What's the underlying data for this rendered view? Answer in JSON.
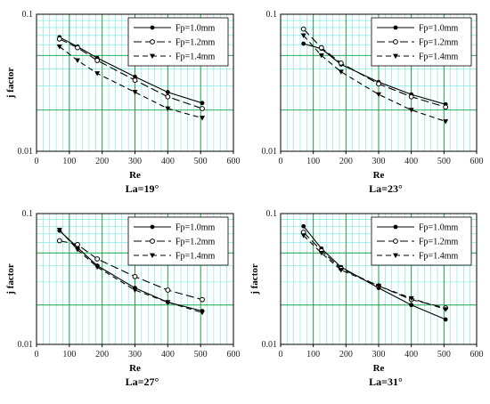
{
  "chart_data": [
    {
      "type": "line",
      "title": "La=19°",
      "xlabel": "Re",
      "ylabel": "j factor",
      "xlim": [
        0,
        600
      ],
      "ylim": [
        0.01,
        0.1
      ],
      "yscale": "log",
      "x_ticks": [
        "0",
        "100",
        "200",
        "300",
        "400",
        "500",
        "600"
      ],
      "y_ticks": [
        "0.01",
        "0.1"
      ],
      "grid": true,
      "legend_position": "top-right",
      "series": [
        {
          "name": "Fp=1.0mm",
          "x": [
            70,
            125,
            185,
            300,
            400,
            505
          ],
          "y": [
            0.068,
            0.058,
            0.048,
            0.035,
            0.027,
            0.0225
          ]
        },
        {
          "name": "Fp=1.2mm",
          "x": [
            70,
            125,
            185,
            300,
            400,
            505
          ],
          "y": [
            0.066,
            0.057,
            0.046,
            0.033,
            0.025,
            0.0205
          ]
        },
        {
          "name": "Fp=1.4mm",
          "x": [
            70,
            125,
            185,
            300,
            400,
            505
          ],
          "y": [
            0.058,
            0.046,
            0.037,
            0.027,
            0.0205,
            0.0175
          ]
        }
      ]
    },
    {
      "type": "line",
      "title": "La=23°",
      "xlabel": "Re",
      "ylabel": "",
      "xlim": [
        0,
        600
      ],
      "ylim": [
        0.01,
        0.1
      ],
      "yscale": "log",
      "x_ticks": [
        "0",
        "100",
        "200",
        "300",
        "400",
        "500",
        "600"
      ],
      "y_ticks": [
        "0.01",
        "0.1"
      ],
      "grid": true,
      "legend_position": "top-right",
      "series": [
        {
          "name": "Fp=1.0mm",
          "x": [
            70,
            125,
            185,
            300,
            400,
            505
          ],
          "y": [
            0.061,
            0.056,
            0.043,
            0.032,
            0.026,
            0.022
          ]
        },
        {
          "name": "Fp=1.2mm",
          "x": [
            70,
            125,
            185,
            300,
            400,
            505
          ],
          "y": [
            0.078,
            0.057,
            0.044,
            0.031,
            0.025,
            0.021
          ]
        },
        {
          "name": "Fp=1.4mm",
          "x": [
            70,
            125,
            185,
            300,
            400,
            505
          ],
          "y": [
            0.07,
            0.05,
            0.038,
            0.026,
            0.02,
            0.0165
          ]
        }
      ]
    },
    {
      "type": "line",
      "title": "La=27°",
      "xlabel": "Re",
      "ylabel": "j factor",
      "xlim": [
        0,
        600
      ],
      "ylim": [
        0.01,
        0.1
      ],
      "yscale": "log",
      "x_ticks": [
        "0",
        "100",
        "200",
        "300",
        "400",
        "500",
        "600"
      ],
      "y_ticks": [
        "0.01",
        "0.1"
      ],
      "grid": true,
      "legend_position": "top-right",
      "series": [
        {
          "name": "Fp=1.0mm",
          "x": [
            70,
            125,
            185,
            300,
            400,
            505
          ],
          "y": [
            0.074,
            0.055,
            0.04,
            0.027,
            0.021,
            0.018
          ]
        },
        {
          "name": "Fp=1.2mm",
          "x": [
            70,
            125,
            185,
            300,
            400,
            505
          ],
          "y": [
            0.062,
            0.058,
            0.045,
            0.033,
            0.026,
            0.022
          ]
        },
        {
          "name": "Fp=1.4mm",
          "x": [
            70,
            125,
            185,
            300,
            400,
            505
          ],
          "y": [
            0.075,
            0.053,
            0.039,
            0.026,
            0.021,
            0.0175
          ]
        }
      ]
    },
    {
      "type": "line",
      "title": "La=31°",
      "xlabel": "Re",
      "ylabel": "j factor",
      "xlim": [
        0,
        600
      ],
      "ylim": [
        0.01,
        0.1
      ],
      "yscale": "log",
      "x_ticks": [
        "0",
        "100",
        "200",
        "300",
        "400",
        "500",
        "600"
      ],
      "y_ticks": [
        "0.01",
        "0.1"
      ],
      "grid": true,
      "legend_position": "top-right",
      "series": [
        {
          "name": "Fp=1.0mm",
          "x": [
            70,
            125,
            185,
            300,
            400,
            505
          ],
          "y": [
            0.08,
            0.054,
            0.039,
            0.027,
            0.02,
            0.0155
          ]
        },
        {
          "name": "Fp=1.2mm",
          "x": [
            70,
            125,
            185,
            300,
            400,
            505
          ],
          "y": [
            0.072,
            0.052,
            0.038,
            0.028,
            0.022,
            0.019
          ]
        },
        {
          "name": "Fp=1.4mm",
          "x": [
            70,
            125,
            185,
            300,
            400,
            505
          ],
          "y": [
            0.068,
            0.05,
            0.037,
            0.028,
            0.0225,
            0.0185
          ]
        }
      ]
    }
  ],
  "colors": {
    "major_grid": "#16a34a",
    "minor_grid": "#6ee7e0",
    "line": "#000000"
  },
  "series_styles": {
    "Fp=1.0mm": {
      "dash": "solid",
      "marker": "filled-circle"
    },
    "Fp=1.2mm": {
      "dash": "long-dash",
      "marker": "open-circle"
    },
    "Fp=1.4mm": {
      "dash": "dash",
      "marker": "filled-triangle-down"
    }
  }
}
